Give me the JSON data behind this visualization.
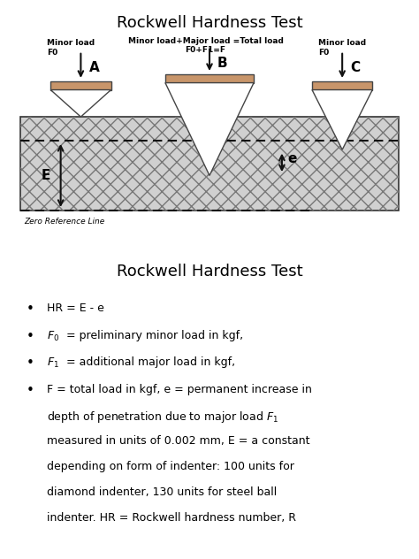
{
  "title_top": "Rockwell Hardness Test",
  "title_bottom": "Rockwell Hardness Test",
  "indenter_fill": "#c8956a",
  "indenter_edge": "#444444",
  "material_fill": "#d0d0d0",
  "material_edge": "#333333",
  "label_A": "A",
  "label_B": "B",
  "label_C": "C",
  "label_E": "E",
  "label_e": "e",
  "minor_load_left": "Minor load\nF0",
  "total_load_text": "Minor load+Major load =Total load\nF0+F1=F",
  "minor_load_right": "Minor load\nF0",
  "zero_ref_text": "Zero Reference Line",
  "diagram_border": "#888888",
  "diagram_bg": "#e0e0e0",
  "dashed_color": "#111111",
  "arrow_color": "#111111"
}
